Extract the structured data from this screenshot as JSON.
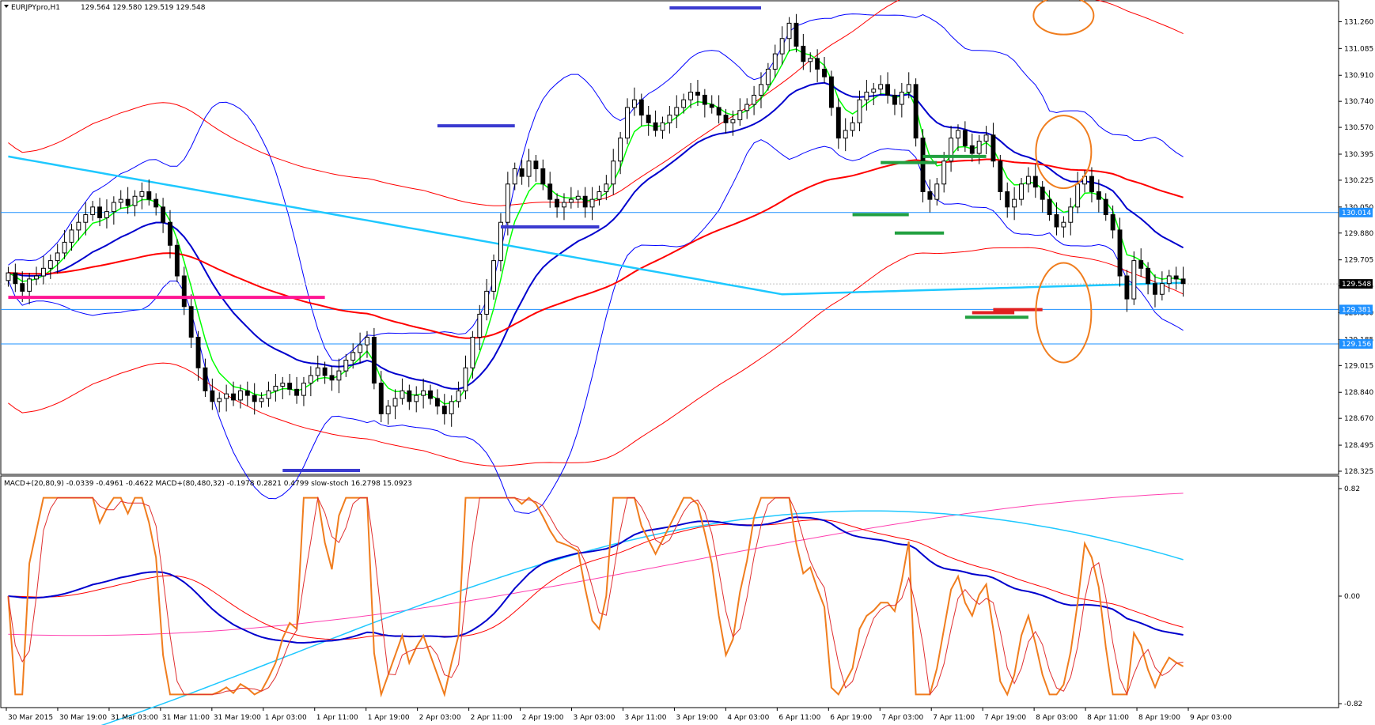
{
  "window": {
    "symbol": "EURJPYpro,H1",
    "quote": "129.564 129.580 129.519 129.548"
  },
  "indicator_header": "MACD+(20,80,9) -0.0339 -0.4961 -0.4622  MACD+(80,480,32) -0.1978 0.2821 0.4799  slow-stoch 16.2798 15.0923",
  "colors": {
    "bull_candle": "#000000",
    "bear_candle": "#000000",
    "bollinger": "#0000ff",
    "envelope": "#ff0000",
    "ema_fast": "#00ff00",
    "ema_mid": "#0000cd",
    "ema_slow": "#ff0000",
    "ema_long": "#1ec8ff",
    "level_line": "#1e90ff",
    "annotation_circle": "#f07d1e"
  },
  "chart_data": [
    {
      "type": "candlestick",
      "instrument": "EURJPYpro",
      "timeframe": "H1",
      "ylim": [
        128.325,
        131.35
      ],
      "y_ticks": [
        "131.260",
        "131.085",
        "130.910",
        "130.740",
        "130.570",
        "130.395",
        "130.225",
        "130.050",
        "129.880",
        "129.705",
        "129.535",
        "129.360",
        "129.185",
        "129.015",
        "128.840",
        "128.670",
        "128.495",
        "128.325"
      ],
      "x_ticks": [
        "30 Mar 2015",
        "30 Mar 19:00",
        "31 Mar 03:00",
        "31 Mar 11:00",
        "31 Mar 19:00",
        "1 Apr 03:00",
        "1 Apr 11:00",
        "1 Apr 19:00",
        "2 Apr 03:00",
        "2 Apr 11:00",
        "2 Apr 19:00",
        "3 Apr 03:00",
        "3 Apr 11:00",
        "3 Apr 19:00",
        "4 Apr 03:00",
        "6 Apr 11:00",
        "6 Apr 19:00",
        "7 Apr 03:00",
        "7 Apr 11:00",
        "7 Apr 19:00",
        "8 Apr 03:00",
        "8 Apr 11:00",
        "8 Apr 19:00",
        "9 Apr 03:00"
      ],
      "price_tags": [
        {
          "label": "130.014",
          "value": 130.014,
          "kind": "level"
        },
        {
          "label": "129.548",
          "value": 129.548,
          "kind": "current"
        },
        {
          "label": "129.381",
          "value": 129.381,
          "kind": "level"
        },
        {
          "label": "129.156",
          "value": 129.156,
          "kind": "level"
        }
      ],
      "closes": [
        129.62,
        129.55,
        129.5,
        129.58,
        129.6,
        129.65,
        129.7,
        129.75,
        129.82,
        129.9,
        129.95,
        130.0,
        130.05,
        129.98,
        130.02,
        130.08,
        130.1,
        130.06,
        130.12,
        130.15,
        130.1,
        130.05,
        129.95,
        129.8,
        129.6,
        129.4,
        129.2,
        129.0,
        128.85,
        128.78,
        128.8,
        128.83,
        128.79,
        128.85,
        128.82,
        128.78,
        128.8,
        128.85,
        128.88,
        128.9,
        128.86,
        128.82,
        128.9,
        128.95,
        129.0,
        128.95,
        128.92,
        128.98,
        129.05,
        129.1,
        129.15,
        129.2,
        128.9,
        128.7,
        128.75,
        128.8,
        128.85,
        128.78,
        128.82,
        128.85,
        128.8,
        128.75,
        128.7,
        128.78,
        128.85,
        129.0,
        129.2,
        129.35,
        129.5,
        129.7,
        129.95,
        130.2,
        130.3,
        130.25,
        130.35,
        130.3,
        130.2,
        130.1,
        130.05,
        130.08,
        130.1,
        130.12,
        130.05,
        130.1,
        130.15,
        130.2,
        130.35,
        130.5,
        130.7,
        130.75,
        130.65,
        130.6,
        130.55,
        130.6,
        130.65,
        130.7,
        130.75,
        130.8,
        130.78,
        130.72,
        130.7,
        130.65,
        130.6,
        130.62,
        130.68,
        130.72,
        130.78,
        130.85,
        130.95,
        131.05,
        131.15,
        131.25,
        131.1,
        131.0,
        131.02,
        130.95,
        130.9,
        130.7,
        130.5,
        130.55,
        130.6,
        130.75,
        130.8,
        130.82,
        130.85,
        130.78,
        130.72,
        130.8,
        130.85,
        130.5,
        130.15,
        130.1,
        130.2,
        130.35,
        130.5,
        130.55,
        130.45,
        130.4,
        130.48,
        130.52,
        130.35,
        130.15,
        130.05,
        130.1,
        130.2,
        130.25,
        130.18,
        130.1,
        130.0,
        129.92,
        129.95,
        130.05,
        130.2,
        130.25,
        130.15,
        130.1,
        130.0,
        129.9,
        129.6,
        129.45,
        129.7,
        129.65,
        129.55,
        129.48,
        129.55,
        129.6,
        129.58,
        129.55
      ]
    },
    {
      "type": "line",
      "title": "MACD+ / slow-stoch",
      "ylim": [
        -0.82,
        0.82
      ],
      "y_ticks": [
        "0.82",
        "0.00",
        "-0.82"
      ]
    }
  ]
}
